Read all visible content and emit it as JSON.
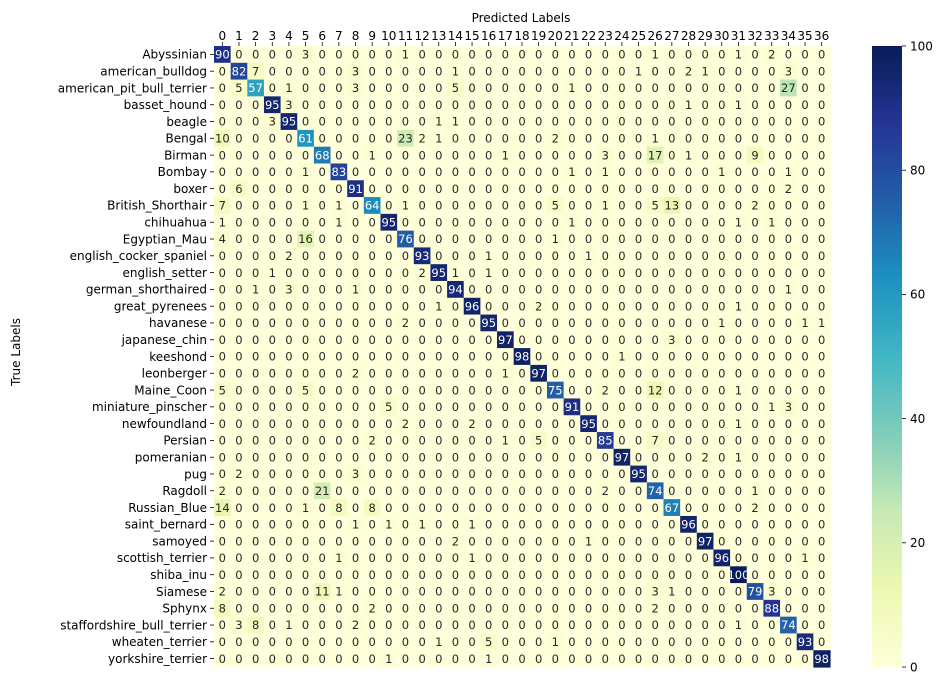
{
  "chart_data": {
    "type": "heatmap",
    "xlabel": "Predicted Labels",
    "ylabel": "True Labels",
    "x_labels": [
      "0",
      "1",
      "2",
      "3",
      "4",
      "5",
      "6",
      "7",
      "8",
      "9",
      "10",
      "11",
      "12",
      "13",
      "14",
      "15",
      "16",
      "17",
      "18",
      "19",
      "20",
      "21",
      "22",
      "23",
      "24",
      "25",
      "26",
      "27",
      "28",
      "29",
      "30",
      "31",
      "32",
      "33",
      "34",
      "35",
      "36"
    ],
    "y_labels": [
      "Abyssinian",
      "american_bulldog",
      "american_pit_bull_terrier",
      "basset_hound",
      "beagle",
      "Bengal",
      "Birman",
      "Bombay",
      "boxer",
      "British_Shorthair",
      "chihuahua",
      "Egyptian_Mau",
      "english_cocker_spaniel",
      "english_setter",
      "german_shorthaired",
      "great_pyrenees",
      "havanese",
      "japanese_chin",
      "keeshond",
      "leonberger",
      "Maine_Coon",
      "miniature_pinscher",
      "newfoundland",
      "Persian",
      "pomeranian",
      "pug",
      "Ragdoll",
      "Russian_Blue",
      "saint_bernard",
      "samoyed",
      "scottish_terrier",
      "shiba_inu",
      "Siamese",
      "Sphynx",
      "staffordshire_bull_terrier",
      "wheaten_terrier",
      "yorkshire_terrier"
    ],
    "values": [
      [
        90,
        0,
        0,
        0,
        0,
        3,
        0,
        0,
        0,
        0,
        0,
        1,
        0,
        0,
        0,
        0,
        0,
        0,
        0,
        0,
        0,
        0,
        0,
        0,
        0,
        0,
        1,
        0,
        0,
        0,
        0,
        1,
        0,
        2,
        0,
        0,
        0
      ],
      [
        0,
        82,
        7,
        0,
        0,
        0,
        0,
        0,
        3,
        0,
        0,
        0,
        0,
        0,
        1,
        0,
        0,
        0,
        0,
        0,
        0,
        0,
        0,
        0,
        0,
        1,
        0,
        0,
        2,
        1,
        0,
        0,
        0,
        0,
        3,
        0,
        0
      ],
      [
        0,
        5,
        57,
        0,
        1,
        0,
        0,
        0,
        3,
        0,
        0,
        0,
        0,
        0,
        5,
        0,
        0,
        0,
        0,
        0,
        0,
        1,
        0,
        0,
        0,
        0,
        0,
        0,
        0,
        0,
        0,
        0,
        0,
        0,
        27,
        0,
        0
      ],
      [
        0,
        0,
        0,
        95,
        3,
        0,
        0,
        0,
        0,
        0,
        0,
        0,
        0,
        0,
        0,
        0,
        0,
        0,
        0,
        0,
        0,
        0,
        0,
        0,
        0,
        0,
        0,
        0,
        1,
        0,
        0,
        1,
        0,
        0,
        0,
        0,
        0
      ],
      [
        0,
        0,
        0,
        3,
        95,
        0,
        0,
        0,
        0,
        0,
        0,
        0,
        0,
        1,
        1,
        0,
        0,
        0,
        0,
        0,
        0,
        0,
        0,
        0,
        0,
        0,
        0,
        0,
        0,
        0,
        0,
        0,
        0,
        0,
        0,
        0,
        0
      ],
      [
        10,
        0,
        0,
        0,
        0,
        61,
        0,
        0,
        0,
        0,
        0,
        23,
        2,
        1,
        0,
        0,
        0,
        0,
        0,
        0,
        2,
        0,
        0,
        0,
        0,
        0,
        1,
        0,
        0,
        0,
        0,
        0,
        0,
        0,
        0,
        0,
        0
      ],
      [
        0,
        0,
        0,
        0,
        0,
        0,
        68,
        0,
        0,
        1,
        0,
        0,
        0,
        0,
        0,
        0,
        0,
        1,
        0,
        0,
        0,
        0,
        0,
        3,
        0,
        0,
        17,
        0,
        1,
        0,
        0,
        0,
        9,
        0,
        0,
        0,
        0
      ],
      [
        0,
        0,
        0,
        0,
        0,
        1,
        0,
        83,
        0,
        0,
        0,
        0,
        0,
        0,
        0,
        0,
        0,
        0,
        0,
        0,
        0,
        1,
        0,
        1,
        0,
        0,
        0,
        0,
        0,
        0,
        1,
        0,
        0,
        0,
        1,
        0,
        0
      ],
      [
        0,
        6,
        0,
        0,
        0,
        0,
        0,
        0,
        91,
        0,
        0,
        0,
        0,
        0,
        0,
        0,
        0,
        0,
        0,
        0,
        0,
        0,
        0,
        0,
        0,
        0,
        0,
        0,
        0,
        0,
        0,
        0,
        0,
        0,
        2,
        0,
        0
      ],
      [
        7,
        0,
        0,
        0,
        0,
        1,
        0,
        1,
        0,
        64,
        0,
        1,
        0,
        0,
        0,
        0,
        0,
        0,
        0,
        0,
        5,
        0,
        0,
        1,
        0,
        0,
        5,
        13,
        0,
        0,
        0,
        0,
        2,
        0,
        0,
        0,
        0
      ],
      [
        1,
        0,
        0,
        0,
        0,
        0,
        0,
        1,
        0,
        0,
        95,
        0,
        0,
        0,
        0,
        0,
        0,
        0,
        0,
        0,
        0,
        1,
        0,
        0,
        0,
        0,
        0,
        0,
        0,
        0,
        0,
        1,
        0,
        1,
        0,
        0,
        0
      ],
      [
        4,
        0,
        0,
        0,
        0,
        16,
        0,
        0,
        0,
        0,
        0,
        76,
        0,
        0,
        0,
        0,
        0,
        0,
        0,
        0,
        1,
        0,
        0,
        0,
        0,
        0,
        0,
        0,
        0,
        0,
        0,
        0,
        0,
        0,
        0,
        0,
        0
      ],
      [
        0,
        0,
        0,
        0,
        2,
        0,
        0,
        0,
        0,
        0,
        0,
        0,
        93,
        0,
        0,
        0,
        1,
        0,
        0,
        0,
        0,
        0,
        1,
        0,
        0,
        0,
        0,
        0,
        0,
        0,
        0,
        0,
        0,
        0,
        0,
        0,
        0
      ],
      [
        0,
        0,
        0,
        1,
        0,
        0,
        0,
        0,
        0,
        0,
        0,
        0,
        2,
        95,
        1,
        0,
        1,
        0,
        0,
        0,
        0,
        0,
        0,
        0,
        0,
        0,
        0,
        0,
        0,
        0,
        0,
        0,
        0,
        0,
        0,
        0,
        0
      ],
      [
        0,
        0,
        1,
        0,
        3,
        0,
        0,
        0,
        1,
        0,
        0,
        0,
        0,
        0,
        94,
        0,
        0,
        0,
        0,
        0,
        0,
        0,
        0,
        0,
        0,
        0,
        0,
        0,
        0,
        0,
        0,
        0,
        0,
        0,
        1,
        0,
        0
      ],
      [
        0,
        0,
        0,
        0,
        0,
        0,
        0,
        0,
        0,
        0,
        0,
        0,
        0,
        1,
        0,
        96,
        0,
        0,
        0,
        2,
        0,
        0,
        0,
        0,
        0,
        0,
        0,
        0,
        0,
        0,
        0,
        1,
        0,
        0,
        0,
        0,
        0
      ],
      [
        0,
        0,
        0,
        0,
        0,
        0,
        0,
        0,
        0,
        0,
        0,
        2,
        0,
        0,
        0,
        0,
        95,
        0,
        0,
        0,
        0,
        0,
        0,
        0,
        0,
        0,
        0,
        0,
        0,
        0,
        1,
        0,
        0,
        0,
        0,
        1,
        1
      ],
      [
        0,
        0,
        0,
        0,
        0,
        0,
        0,
        0,
        0,
        0,
        0,
        0,
        0,
        0,
        0,
        0,
        0,
        97,
        0,
        0,
        0,
        0,
        0,
        0,
        0,
        0,
        0,
        3,
        0,
        0,
        0,
        0,
        0,
        0,
        0,
        0,
        0
      ],
      [
        0,
        0,
        0,
        0,
        0,
        0,
        0,
        0,
        0,
        0,
        0,
        0,
        0,
        0,
        0,
        0,
        0,
        0,
        98,
        0,
        0,
        0,
        0,
        0,
        1,
        0,
        0,
        0,
        0,
        0,
        0,
        0,
        0,
        0,
        0,
        0,
        0
      ],
      [
        0,
        0,
        0,
        0,
        0,
        0,
        0,
        0,
        2,
        0,
        0,
        0,
        0,
        0,
        0,
        0,
        0,
        1,
        0,
        97,
        0,
        0,
        0,
        0,
        0,
        0,
        0,
        0,
        0,
        0,
        0,
        0,
        0,
        0,
        0,
        0,
        0
      ],
      [
        5,
        0,
        0,
        0,
        0,
        5,
        0,
        0,
        0,
        0,
        0,
        0,
        0,
        0,
        0,
        0,
        0,
        0,
        0,
        0,
        75,
        0,
        0,
        2,
        0,
        0,
        12,
        0,
        0,
        0,
        0,
        1,
        0,
        0,
        0,
        0,
        0
      ],
      [
        0,
        0,
        0,
        0,
        0,
        0,
        0,
        0,
        0,
        0,
        5,
        0,
        0,
        0,
        0,
        0,
        0,
        0,
        0,
        0,
        0,
        91,
        0,
        0,
        0,
        0,
        0,
        0,
        0,
        0,
        0,
        0,
        0,
        1,
        3,
        0,
        0
      ],
      [
        0,
        0,
        0,
        0,
        0,
        0,
        0,
        0,
        0,
        0,
        0,
        2,
        0,
        0,
        0,
        2,
        0,
        0,
        0,
        0,
        0,
        0,
        95,
        0,
        0,
        0,
        0,
        0,
        0,
        0,
        0,
        1,
        0,
        0,
        0,
        0,
        0
      ],
      [
        0,
        0,
        0,
        0,
        0,
        0,
        0,
        0,
        0,
        2,
        0,
        0,
        0,
        0,
        0,
        0,
        0,
        1,
        0,
        5,
        0,
        0,
        0,
        85,
        0,
        0,
        7,
        0,
        0,
        0,
        0,
        0,
        0,
        0,
        0,
        0,
        0
      ],
      [
        0,
        0,
        0,
        0,
        0,
        0,
        0,
        0,
        0,
        0,
        0,
        0,
        0,
        0,
        0,
        0,
        0,
        0,
        0,
        0,
        0,
        0,
        0,
        0,
        97,
        0,
        0,
        0,
        0,
        2,
        0,
        1,
        0,
        0,
        0,
        0,
        0
      ],
      [
        0,
        2,
        0,
        0,
        0,
        0,
        0,
        0,
        3,
        0,
        0,
        0,
        0,
        0,
        0,
        0,
        0,
        0,
        0,
        0,
        0,
        0,
        0,
        0,
        0,
        95,
        0,
        0,
        0,
        0,
        0,
        0,
        0,
        0,
        0,
        0,
        0
      ],
      [
        2,
        0,
        0,
        0,
        0,
        0,
        21,
        0,
        0,
        0,
        0,
        0,
        0,
        0,
        0,
        0,
        0,
        0,
        0,
        0,
        0,
        0,
        0,
        2,
        0,
        0,
        74,
        0,
        0,
        0,
        0,
        0,
        1,
        0,
        0,
        0,
        0
      ],
      [
        14,
        0,
        0,
        0,
        0,
        1,
        0,
        8,
        0,
        8,
        0,
        0,
        0,
        0,
        0,
        0,
        0,
        0,
        0,
        0,
        0,
        0,
        0,
        0,
        0,
        0,
        0,
        67,
        0,
        0,
        0,
        0,
        2,
        0,
        0,
        0,
        0
      ],
      [
        0,
        0,
        0,
        0,
        0,
        0,
        0,
        0,
        1,
        0,
        1,
        0,
        1,
        0,
        0,
        1,
        0,
        0,
        0,
        0,
        0,
        0,
        0,
        0,
        0,
        0,
        0,
        0,
        96,
        0,
        0,
        0,
        0,
        0,
        0,
        0,
        0
      ],
      [
        0,
        0,
        0,
        0,
        0,
        0,
        0,
        0,
        0,
        0,
        0,
        0,
        0,
        0,
        2,
        0,
        0,
        0,
        0,
        0,
        0,
        0,
        1,
        0,
        0,
        0,
        0,
        0,
        0,
        97,
        0,
        0,
        0,
        0,
        0,
        0,
        0
      ],
      [
        0,
        0,
        0,
        0,
        0,
        0,
        0,
        1,
        0,
        0,
        0,
        0,
        0,
        0,
        0,
        1,
        0,
        0,
        0,
        0,
        0,
        0,
        0,
        0,
        0,
        0,
        0,
        0,
        0,
        0,
        96,
        0,
        0,
        0,
        0,
        1,
        0
      ],
      [
        0,
        0,
        0,
        0,
        0,
        0,
        0,
        0,
        0,
        0,
        0,
        0,
        0,
        0,
        0,
        0,
        0,
        0,
        0,
        0,
        0,
        0,
        0,
        0,
        0,
        0,
        0,
        0,
        0,
        0,
        0,
        100,
        0,
        0,
        0,
        0,
        0
      ],
      [
        2,
        0,
        0,
        0,
        0,
        0,
        11,
        1,
        0,
        0,
        0,
        0,
        0,
        0,
        0,
        0,
        0,
        0,
        0,
        0,
        0,
        0,
        0,
        0,
        0,
        0,
        3,
        1,
        0,
        0,
        0,
        0,
        79,
        3,
        0,
        0,
        0
      ],
      [
        8,
        0,
        0,
        0,
        0,
        0,
        0,
        0,
        0,
        2,
        0,
        0,
        0,
        0,
        0,
        0,
        0,
        0,
        0,
        0,
        0,
        0,
        0,
        0,
        0,
        0,
        2,
        0,
        0,
        0,
        0,
        0,
        0,
        88,
        0,
        0,
        0
      ],
      [
        0,
        3,
        8,
        0,
        1,
        0,
        0,
        0,
        2,
        0,
        0,
        0,
        0,
        0,
        0,
        0,
        0,
        0,
        0,
        0,
        0,
        0,
        0,
        0,
        0,
        0,
        0,
        0,
        0,
        0,
        0,
        1,
        0,
        0,
        74,
        0,
        0
      ],
      [
        0,
        0,
        0,
        0,
        0,
        0,
        0,
        0,
        0,
        0,
        0,
        0,
        0,
        1,
        0,
        0,
        5,
        0,
        0,
        0,
        1,
        0,
        0,
        0,
        0,
        0,
        0,
        0,
        0,
        0,
        0,
        0,
        0,
        0,
        0,
        93,
        0
      ],
      [
        0,
        0,
        0,
        0,
        0,
        0,
        0,
        0,
        0,
        0,
        1,
        0,
        0,
        0,
        0,
        0,
        1,
        0,
        0,
        0,
        0,
        0,
        0,
        0,
        0,
        0,
        0,
        0,
        0,
        0,
        0,
        0,
        0,
        0,
        0,
        0,
        98
      ]
    ],
    "zlim": [
      0,
      100
    ],
    "colorbar_ticks": [
      0,
      20,
      40,
      60,
      80,
      100
    ],
    "colormap": "YlGnBu",
    "colormap_stops": [
      "#ffffd9",
      "#edf8b1",
      "#c7e9b4",
      "#7fcdbb",
      "#41b6c4",
      "#1d91c0",
      "#225ea8",
      "#253494",
      "#081d58"
    ],
    "annotations": "cell values printed in each cell",
    "x_axis_position": "top",
    "colorbar_position": "right",
    "grid": false
  }
}
